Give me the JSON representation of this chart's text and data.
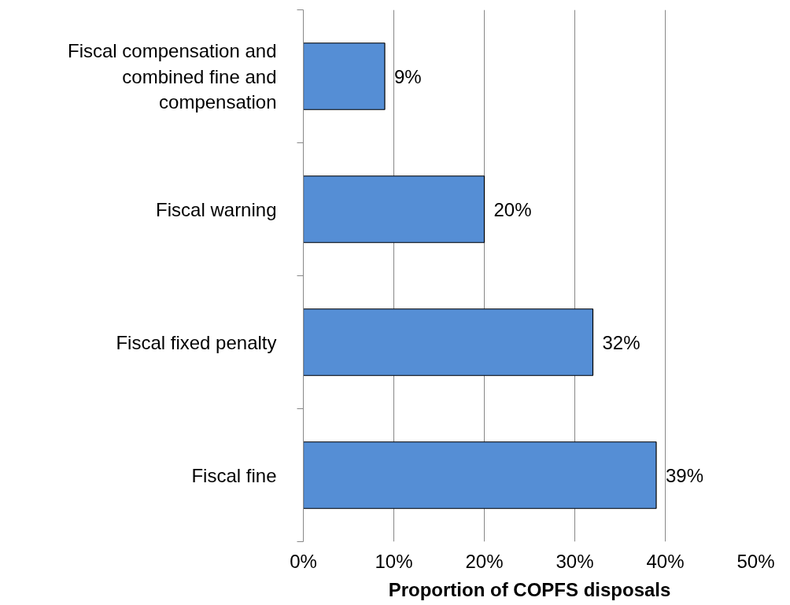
{
  "chart_data": {
    "type": "bar",
    "orientation": "horizontal",
    "categories": [
      "Fiscal compensation and combined fine and compensation",
      "Fiscal warning",
      "Fiscal fixed penalty",
      "Fiscal fine"
    ],
    "values": [
      9,
      20,
      32,
      39
    ],
    "value_labels": [
      "9%",
      "20%",
      "32%",
      "39%"
    ],
    "color": "#558ed5",
    "xlabel": "Proportion of COPFS disposals",
    "xlim": [
      0,
      50
    ],
    "xticks": [
      {
        "value": 0,
        "label": "0%"
      },
      {
        "value": 10,
        "label": "10%"
      },
      {
        "value": 20,
        "label": "20%"
      },
      {
        "value": 30,
        "label": "30%"
      },
      {
        "value": 40,
        "label": "40%"
      },
      {
        "value": 50,
        "label": "50%"
      }
    ],
    "grid": "x"
  }
}
